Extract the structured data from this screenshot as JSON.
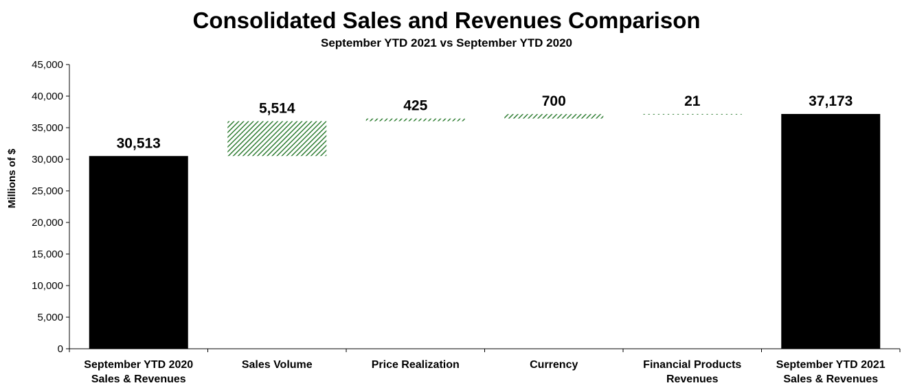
{
  "chart_data": {
    "type": "bar",
    "subtype": "waterfall",
    "title": "Consolidated Sales and Revenues Comparison",
    "subtitle": "September YTD 2021 vs September YTD 2020",
    "ylabel": "Millions of $",
    "xlabel": "",
    "ylim": [
      0,
      45000
    ],
    "ytick_step": 5000,
    "ytick_labels": [
      "0",
      "5,000",
      "10,000",
      "15,000",
      "20,000",
      "25,000",
      "30,000",
      "35,000",
      "40,000",
      "45,000"
    ],
    "grid": false,
    "legend": "none",
    "categories": [
      [
        "September YTD 2020",
        "Sales & Revenues"
      ],
      [
        "Sales Volume"
      ],
      [
        "Price Realization"
      ],
      [
        "Currency"
      ],
      [
        "Financial Products",
        "Revenues"
      ],
      [
        "September YTD 2021",
        "Sales & Revenues"
      ]
    ],
    "bars": [
      {
        "kind": "total",
        "base": 0,
        "value": 30513,
        "label": "30,513"
      },
      {
        "kind": "increase",
        "base": 30513,
        "value": 5514,
        "label": "5,514"
      },
      {
        "kind": "increase",
        "base": 36027,
        "value": 425,
        "label": "425"
      },
      {
        "kind": "increase",
        "base": 36452,
        "value": 700,
        "label": "700"
      },
      {
        "kind": "increase",
        "base": 37152,
        "value": 21,
        "label": "21"
      },
      {
        "kind": "total",
        "base": 0,
        "value": 37173,
        "label": "37,173"
      }
    ],
    "colors": {
      "total": "#000000",
      "increase": "#2e7d32",
      "increase_bg": "#ffffff"
    }
  }
}
